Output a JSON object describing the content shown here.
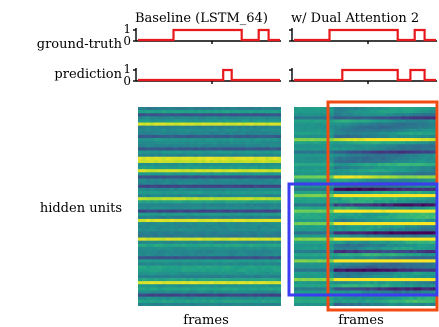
{
  "chart_data": [
    {
      "type": "line",
      "panel": "left",
      "title": "Baseline (LSTM_64)",
      "row_label": "ground-truth",
      "yticks": [
        "1",
        "0"
      ],
      "ylim": [
        0,
        1
      ],
      "xlim": [
        0,
        100
      ],
      "step_x": [
        0,
        25,
        25,
        73,
        73,
        85,
        85,
        92,
        92,
        100
      ],
      "step_y": [
        0,
        0,
        1,
        1,
        0,
        0,
        1,
        1,
        0,
        0
      ],
      "color": "#e8191c"
    },
    {
      "type": "line",
      "panel": "right",
      "title": "w/ Dual Attention 2",
      "row_label": "ground-truth",
      "yticks": [
        "1",
        "0"
      ],
      "ylim": [
        0,
        1
      ],
      "xlim": [
        0,
        100
      ],
      "step_x": [
        0,
        25,
        25,
        73,
        73,
        85,
        85,
        92,
        92,
        100
      ],
      "step_y": [
        0,
        0,
        1,
        1,
        0,
        0,
        1,
        1,
        0,
        0
      ],
      "color": "#e8191c"
    },
    {
      "type": "line",
      "panel": "left",
      "row_label": "prediction",
      "yticks": [
        "1",
        "0"
      ],
      "ylim": [
        0,
        1
      ],
      "xlim": [
        0,
        100
      ],
      "step_x": [
        0,
        60,
        60,
        66,
        66,
        100
      ],
      "step_y": [
        0,
        0,
        1,
        1,
        0,
        0
      ],
      "color": "#e8191c"
    },
    {
      "type": "line",
      "panel": "right",
      "row_label": "prediction",
      "yticks": [
        "1",
        "0"
      ],
      "ylim": [
        0,
        1
      ],
      "xlim": [
        0,
        100
      ],
      "step_x": [
        0,
        34,
        34,
        73,
        73,
        82,
        82,
        92,
        92,
        100
      ],
      "step_y": [
        0,
        0,
        1,
        1,
        0,
        0,
        1,
        1,
        0,
        0
      ],
      "color": "#e8191c"
    },
    {
      "type": "heatmap",
      "panel": "left",
      "row_label": "hidden units",
      "xlabel": "frames",
      "colormap": "viridis",
      "rows": 64,
      "bright_rows": [
        5,
        16,
        17,
        20,
        29,
        36,
        42,
        56
      ],
      "dark_rows": [
        2,
        9,
        13,
        22,
        25,
        33,
        48,
        60
      ]
    },
    {
      "type": "heatmap",
      "panel": "right",
      "xlabel": "frames",
      "colormap": "viridis",
      "rows": 64,
      "bright_rows": [
        10,
        22,
        28,
        33,
        37,
        42,
        49,
        55
      ],
      "dark_rows": [
        3,
        14,
        26,
        31,
        40,
        46,
        52,
        58
      ],
      "highlight_boxes": [
        {
          "name": "red-box",
          "color": "#f24b14"
        },
        {
          "name": "blue-box",
          "color": "#3c3cf0"
        }
      ]
    }
  ]
}
